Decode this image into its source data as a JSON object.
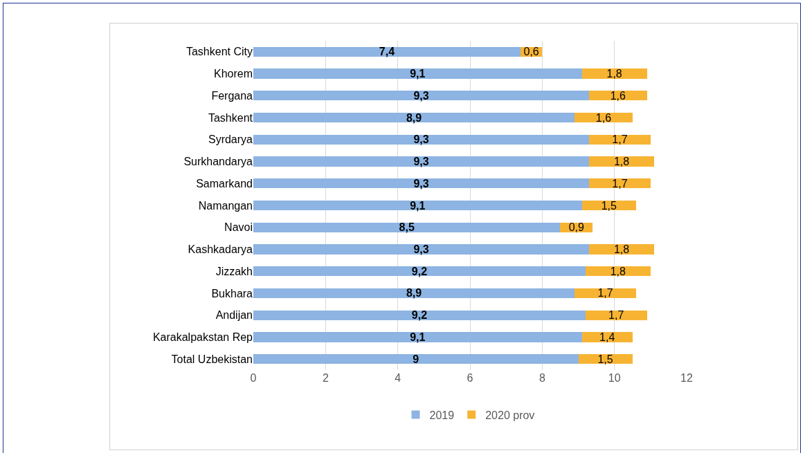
{
  "chart_data": {
    "type": "bar",
    "orientation": "horizontal",
    "stacked": true,
    "categories": [
      "Tashkent City",
      "Khorem",
      "Fergana",
      "Tashkent",
      "Syrdarya",
      "Surkhandarya",
      "Samarkand",
      "Namangan",
      "Navoi",
      "Kashkadarya",
      "Jizzakh",
      "Bukhara",
      "Andijan",
      "Karakalpakstan Rep",
      "Total Uzbekistan"
    ],
    "series": [
      {
        "name": "2019",
        "color": "#8db4e2",
        "values": [
          7.4,
          9.1,
          9.3,
          8.9,
          9.3,
          9.3,
          9.3,
          9.1,
          8.5,
          9.3,
          9.2,
          8.9,
          9.2,
          9.1,
          9
        ],
        "value_labels": [
          "7,4",
          "9,1",
          "9,3",
          "8,9",
          "9,3",
          "9,3",
          "9,3",
          "9,1",
          "8,5",
          "9,3",
          "9,2",
          "8,9",
          "9,2",
          "9,1",
          "9"
        ]
      },
      {
        "name": "2020 prov",
        "color": "#f7b433",
        "values": [
          0.6,
          1.8,
          1.6,
          1.6,
          1.7,
          1.8,
          1.7,
          1.5,
          0.9,
          1.8,
          1.8,
          1.7,
          1.7,
          1.4,
          1.5
        ],
        "value_labels": [
          "0,6",
          "1,8",
          "1,6",
          "1,6",
          "1,7",
          "1,8",
          "1,7",
          "1,5",
          "0,9",
          "1,8",
          "1,8",
          "1,7",
          "1,7",
          "1,4",
          "1,5"
        ]
      }
    ],
    "xlim": [
      0,
      12
    ],
    "xticks": [
      0,
      2,
      4,
      6,
      8,
      10,
      12
    ],
    "grid": "x",
    "legend": "bottom"
  }
}
